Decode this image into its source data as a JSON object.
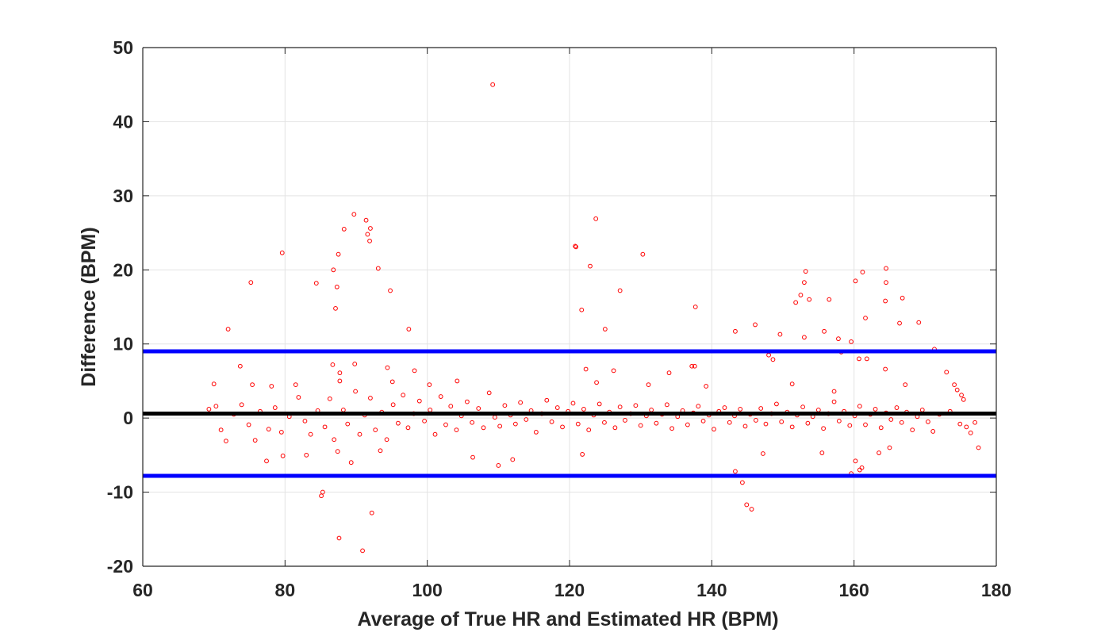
{
  "chart_data": {
    "type": "scatter",
    "title": "",
    "xlabel": "Average of True HR and Estimated HR (BPM)",
    "ylabel": "Difference (BPM)",
    "xlim": [
      60,
      180
    ],
    "ylim": [
      -20,
      50
    ],
    "xticks": [
      60,
      80,
      100,
      120,
      140,
      160,
      180
    ],
    "yticks": [
      -20,
      -10,
      0,
      10,
      20,
      30,
      40,
      50
    ],
    "xtick_labels": [
      "60",
      "80",
      "100",
      "120",
      "140",
      "160",
      "180"
    ],
    "ytick_labels": [
      "-20",
      "-10",
      "0",
      "10",
      "20",
      "30",
      "40",
      "50"
    ],
    "grid": true,
    "marker_color": "#ff0000",
    "reference_lines": [
      {
        "role": "mean_difference",
        "y": 0.6,
        "color": "#000000"
      },
      {
        "role": "upper_limit_of_agreement",
        "y": 9.0,
        "color": "#0000ff"
      },
      {
        "role": "lower_limit_of_agreement",
        "y": -7.8,
        "color": "#0000ff"
      }
    ],
    "series": [
      {
        "points": [
          [
            109.2,
            45.0
          ],
          [
            89.7,
            27.5
          ],
          [
            91.4,
            26.7
          ],
          [
            92.0,
            25.6
          ],
          [
            88.3,
            25.5
          ],
          [
            91.6,
            24.8
          ],
          [
            91.9,
            23.9
          ],
          [
            123.7,
            26.9
          ],
          [
            120.8,
            23.2
          ],
          [
            120.9,
            23.1
          ],
          [
            122.9,
            20.5
          ],
          [
            130.3,
            22.1
          ],
          [
            79.6,
            22.3
          ],
          [
            87.5,
            22.1
          ],
          [
            86.8,
            20.0
          ],
          [
            93.1,
            20.2
          ],
          [
            84.4,
            18.2
          ],
          [
            75.2,
            18.3
          ],
          [
            87.3,
            17.7
          ],
          [
            94.8,
            17.2
          ],
          [
            87.1,
            14.8
          ],
          [
            127.1,
            17.2
          ],
          [
            121.7,
            14.6
          ],
          [
            137.7,
            15.0
          ],
          [
            125.0,
            12.0
          ],
          [
            97.4,
            12.0
          ],
          [
            72.0,
            12.0
          ],
          [
            153.2,
            19.8
          ],
          [
            164.5,
            20.2
          ],
          [
            161.2,
            19.7
          ],
          [
            160.2,
            18.5
          ],
          [
            153.0,
            18.3
          ],
          [
            164.5,
            18.3
          ],
          [
            152.5,
            16.6
          ],
          [
            151.8,
            15.6
          ],
          [
            153.7,
            16.0
          ],
          [
            156.5,
            16.0
          ],
          [
            166.8,
            16.2
          ],
          [
            164.4,
            15.8
          ],
          [
            161.6,
            13.5
          ],
          [
            166.4,
            12.8
          ],
          [
            169.1,
            12.9
          ],
          [
            146.1,
            12.6
          ],
          [
            143.3,
            11.7
          ],
          [
            149.6,
            11.3
          ],
          [
            155.8,
            11.7
          ],
          [
            153.0,
            10.9
          ],
          [
            157.8,
            10.7
          ],
          [
            159.6,
            10.3
          ],
          [
            171.3,
            9.3
          ],
          [
            158.2,
            8.9
          ],
          [
            160.7,
            8.0
          ],
          [
            161.8,
            8.0
          ],
          [
            148.0,
            8.5
          ],
          [
            148.6,
            7.9
          ],
          [
            73.7,
            7.0
          ],
          [
            86.7,
            7.2
          ],
          [
            89.8,
            7.3
          ],
          [
            94.4,
            6.8
          ],
          [
            98.2,
            6.4
          ],
          [
            126.2,
            6.4
          ],
          [
            137.2,
            7.0
          ],
          [
            137.6,
            7.0
          ],
          [
            122.3,
            6.6
          ],
          [
            134.0,
            6.1
          ],
          [
            173.0,
            6.2
          ],
          [
            164.4,
            6.6
          ],
          [
            87.7,
            6.1
          ],
          [
            87.7,
            5.0
          ],
          [
            85.3,
            -10.0
          ],
          [
            85.1,
            -10.5
          ],
          [
            87.6,
            -16.2
          ],
          [
            90.9,
            -17.9
          ],
          [
            92.2,
            -12.8
          ],
          [
            144.3,
            -8.7
          ],
          [
            144.9,
            -11.7
          ],
          [
            145.6,
            -12.3
          ],
          [
            143.3,
            -7.2
          ],
          [
            159.6,
            -7.5
          ],
          [
            161.1,
            -6.7
          ],
          [
            160.8,
            -7.0
          ],
          [
            160.2,
            -5.8
          ],
          [
            110.0,
            -6.4
          ],
          [
            112.0,
            -5.6
          ],
          [
            106.4,
            -5.3
          ],
          [
            77.4,
            -5.8
          ],
          [
            79.7,
            -5.1
          ],
          [
            83.0,
            -5.0
          ],
          [
            87.4,
            -4.5
          ],
          [
            89.3,
            -6.0
          ],
          [
            93.4,
            -4.4
          ],
          [
            121.8,
            -4.9
          ],
          [
            147.2,
            -4.8
          ],
          [
            155.5,
            -4.7
          ],
          [
            163.5,
            -4.7
          ],
          [
            165.0,
            -4.0
          ],
          [
            177.5,
            -4.0
          ],
          [
            70.0,
            4.6
          ],
          [
            75.4,
            4.5
          ],
          [
            78.1,
            4.3
          ],
          [
            81.5,
            4.5
          ],
          [
            95.1,
            4.9
          ],
          [
            100.3,
            4.5
          ],
          [
            104.2,
            5.0
          ],
          [
            123.8,
            4.8
          ],
          [
            131.1,
            4.5
          ],
          [
            139.2,
            4.3
          ],
          [
            151.3,
            4.6
          ],
          [
            157.2,
            3.6
          ],
          [
            167.2,
            4.5
          ],
          [
            174.1,
            4.5
          ],
          [
            174.5,
            3.8
          ],
          [
            175.1,
            3.1
          ],
          [
            175.4,
            2.5
          ],
          [
            69.3,
            1.2
          ],
          [
            70.3,
            1.6
          ],
          [
            71.0,
            -1.6
          ],
          [
            71.7,
            -3.1
          ],
          [
            72.8,
            0.5
          ],
          [
            73.9,
            1.8
          ],
          [
            74.9,
            -0.9
          ],
          [
            75.8,
            -3.0
          ],
          [
            76.5,
            0.9
          ],
          [
            77.7,
            -1.5
          ],
          [
            78.6,
            1.4
          ],
          [
            79.5,
            -1.9
          ],
          [
            80.6,
            0.2
          ],
          [
            81.9,
            2.8
          ],
          [
            82.8,
            -0.4
          ],
          [
            83.6,
            -2.2
          ],
          [
            84.6,
            1.0
          ],
          [
            85.6,
            -1.2
          ],
          [
            86.3,
            2.6
          ],
          [
            86.9,
            -2.9
          ],
          [
            88.2,
            1.1
          ],
          [
            88.8,
            -0.8
          ],
          [
            89.9,
            3.6
          ],
          [
            90.5,
            -2.2
          ],
          [
            91.2,
            0.4
          ],
          [
            92.0,
            2.7
          ],
          [
            92.7,
            -1.6
          ],
          [
            93.6,
            0.8
          ],
          [
            94.3,
            -2.9
          ],
          [
            95.2,
            1.8
          ],
          [
            95.9,
            -0.7
          ],
          [
            96.6,
            3.1
          ],
          [
            97.3,
            -1.3
          ],
          [
            98.1,
            0.6
          ],
          [
            98.9,
            2.3
          ],
          [
            99.6,
            -0.4
          ],
          [
            100.4,
            1.1
          ],
          [
            101.1,
            -2.2
          ],
          [
            101.9,
            2.9
          ],
          [
            102.6,
            -0.9
          ],
          [
            103.3,
            1.6
          ],
          [
            104.1,
            -1.6
          ],
          [
            104.8,
            0.3
          ],
          [
            105.6,
            2.2
          ],
          [
            106.3,
            -0.6
          ],
          [
            107.2,
            1.3
          ],
          [
            107.9,
            -1.3
          ],
          [
            108.7,
            3.4
          ],
          [
            109.5,
            0.1
          ],
          [
            110.2,
            -1.1
          ],
          [
            110.9,
            1.7
          ],
          [
            111.7,
            0.4
          ],
          [
            112.4,
            -0.8
          ],
          [
            113.1,
            2.1
          ],
          [
            113.9,
            -0.2
          ],
          [
            114.6,
            1.0
          ],
          [
            115.3,
            -1.9
          ],
          [
            116.1,
            0.6
          ],
          [
            116.8,
            2.4
          ],
          [
            117.5,
            -0.5
          ],
          [
            118.3,
            1.4
          ],
          [
            119.0,
            -1.2
          ],
          [
            119.8,
            0.9
          ],
          [
            120.5,
            2.0
          ],
          [
            121.2,
            -0.8
          ],
          [
            122.0,
            1.2
          ],
          [
            122.7,
            -1.6
          ],
          [
            123.4,
            0.4
          ],
          [
            124.2,
            1.9
          ],
          [
            124.9,
            -0.6
          ],
          [
            125.6,
            0.8
          ],
          [
            126.4,
            -1.3
          ],
          [
            127.1,
            1.5
          ],
          [
            127.8,
            -0.3
          ],
          [
            128.6,
            0.6
          ],
          [
            129.3,
            1.7
          ],
          [
            130.0,
            -1.0
          ],
          [
            130.8,
            0.3
          ],
          [
            131.5,
            1.1
          ],
          [
            132.2,
            -0.7
          ],
          [
            133.0,
            0.5
          ],
          [
            133.7,
            1.8
          ],
          [
            134.4,
            -1.4
          ],
          [
            135.2,
            0.2
          ],
          [
            135.9,
            1.0
          ],
          [
            136.6,
            -0.9
          ],
          [
            137.4,
            0.7
          ],
          [
            138.1,
            1.6
          ],
          [
            138.8,
            -0.4
          ],
          [
            139.6,
            0.4
          ],
          [
            140.3,
            -1.5
          ],
          [
            141.0,
            0.9
          ],
          [
            141.8,
            1.4
          ],
          [
            142.5,
            -0.6
          ],
          [
            143.2,
            0.3
          ],
          [
            144.0,
            1.2
          ],
          [
            144.7,
            -1.1
          ],
          [
            145.4,
            0.5
          ],
          [
            146.2,
            -0.3
          ],
          [
            146.9,
            1.3
          ],
          [
            147.6,
            -0.8
          ],
          [
            148.4,
            0.6
          ],
          [
            149.1,
            1.9
          ],
          [
            149.8,
            -0.5
          ],
          [
            150.6,
            0.8
          ],
          [
            151.3,
            -1.2
          ],
          [
            152.0,
            0.4
          ],
          [
            152.8,
            1.5
          ],
          [
            153.5,
            -0.7
          ],
          [
            154.2,
            0.2
          ],
          [
            155.0,
            1.1
          ],
          [
            155.7,
            -1.4
          ],
          [
            156.4,
            0.6
          ],
          [
            157.2,
            2.2
          ],
          [
            157.9,
            -0.4
          ],
          [
            158.6,
            0.9
          ],
          [
            159.4,
            -1.0
          ],
          [
            160.1,
            0.3
          ],
          [
            160.8,
            1.6
          ],
          [
            161.6,
            -0.9
          ],
          [
            162.3,
            0.5
          ],
          [
            163.0,
            1.2
          ],
          [
            163.8,
            -1.3
          ],
          [
            164.5,
            0.7
          ],
          [
            165.2,
            -0.2
          ],
          [
            166.0,
            1.4
          ],
          [
            166.7,
            -0.6
          ],
          [
            167.4,
            0.8
          ],
          [
            168.2,
            -1.6
          ],
          [
            168.9,
            0.2
          ],
          [
            169.6,
            1.1
          ],
          [
            170.4,
            -0.5
          ],
          [
            171.1,
            -1.8
          ],
          [
            172.0,
            0.5
          ],
          [
            173.5,
            0.9
          ],
          [
            174.9,
            -0.8
          ],
          [
            175.8,
            -1.2
          ],
          [
            176.4,
            -2.0
          ],
          [
            177.0,
            -0.6
          ]
        ]
      }
    ]
  }
}
